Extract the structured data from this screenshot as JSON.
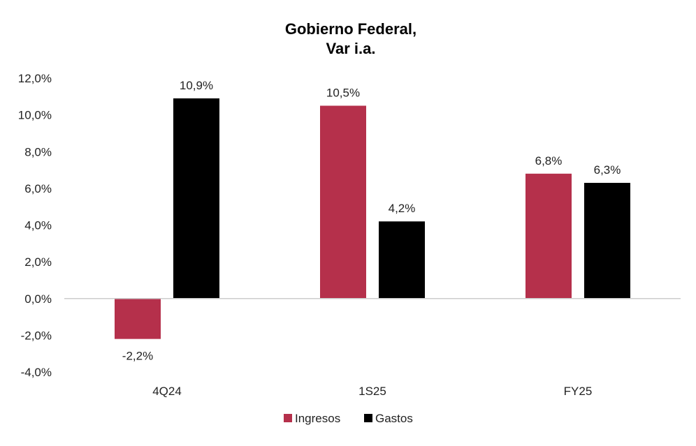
{
  "chart_data": {
    "type": "bar",
    "title_line1": "Gobierno Federal,",
    "title_line2": "Var i.a.",
    "categories": [
      "4Q24",
      "1S25",
      "FY25"
    ],
    "series": [
      {
        "name": "Ingresos",
        "values": [
          -2.2,
          10.5,
          6.8
        ],
        "labels": [
          "-2,2%",
          "10,5%",
          "6,8%"
        ],
        "color": "#b5304b"
      },
      {
        "name": "Gastos",
        "values": [
          10.9,
          4.2,
          6.3
        ],
        "labels": [
          "10,9%",
          "4,2%",
          "6,3%"
        ],
        "color": "#000000"
      }
    ],
    "ylim": [
      -4,
      12
    ],
    "yticks": [
      12,
      10,
      8,
      6,
      4,
      2,
      0,
      -2,
      -4
    ],
    "ytick_labels": [
      "12,0%",
      "10,0%",
      "8,0%",
      "6,0%",
      "4,0%",
      "2,0%",
      "0,0%",
      "-2,0%",
      "-4,0%"
    ],
    "xlabel": "",
    "ylabel": "",
    "legend_position": "bottom-center",
    "grid": false
  }
}
